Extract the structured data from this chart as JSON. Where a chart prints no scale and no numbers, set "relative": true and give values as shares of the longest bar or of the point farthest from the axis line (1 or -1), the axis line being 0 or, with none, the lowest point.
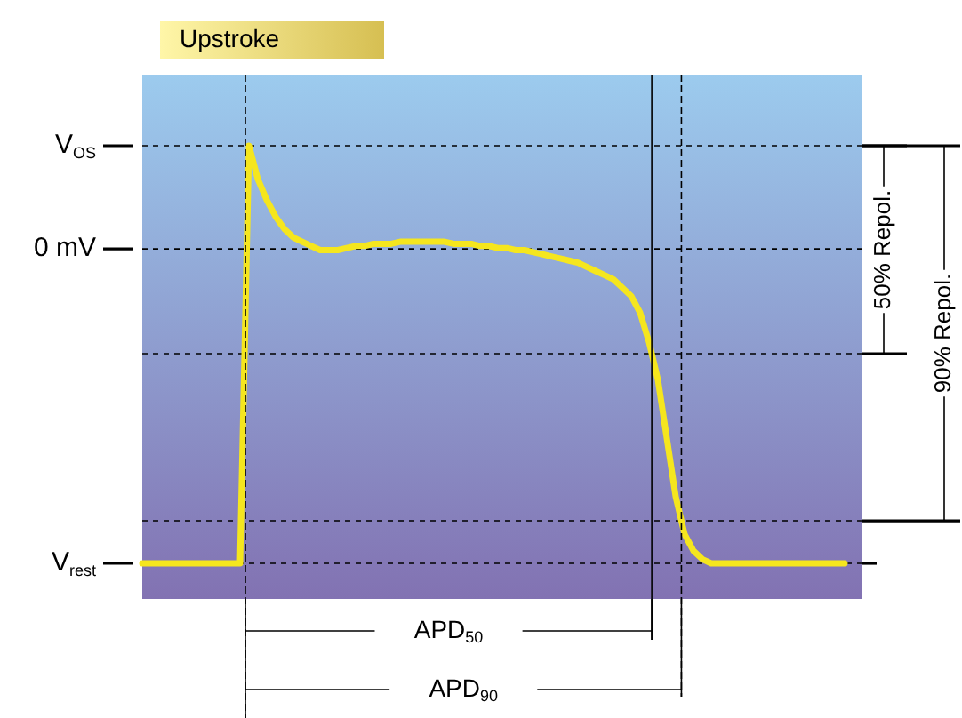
{
  "chart_data": {
    "type": "line",
    "relative": true,
    "tick_labels": false,
    "color": "#f5e61e",
    "categories": [
      null,
      null,
      null,
      null,
      null,
      null,
      null,
      null,
      null,
      null,
      null,
      null,
      null,
      null,
      null,
      null,
      null,
      null,
      null,
      null,
      null,
      null,
      null,
      null,
      null,
      null,
      null,
      null,
      null,
      null,
      null,
      null,
      null,
      null,
      null,
      null,
      null,
      null,
      null,
      null,
      null,
      null,
      null,
      null,
      null,
      null,
      null,
      null,
      null,
      null,
      null,
      null,
      null,
      null,
      null,
      null,
      null,
      null,
      null,
      null,
      null,
      null,
      null,
      null,
      null,
      null,
      null,
      null,
      null,
      null,
      null,
      null,
      null,
      null,
      null,
      null,
      null,
      null,
      null,
      null
    ],
    "values": [
      0,
      0,
      0,
      0,
      0,
      0,
      0,
      0,
      0,
      0,
      0,
      0,
      1,
      0.92,
      0.87,
      0.83,
      0.8,
      0.78,
      0.77,
      0.76,
      0.75,
      0.75,
      0.75,
      0.755,
      0.76,
      0.76,
      0.765,
      0.765,
      0.765,
      0.77,
      0.77,
      0.77,
      0.77,
      0.77,
      0.77,
      0.765,
      0.765,
      0.765,
      0.76,
      0.76,
      0.755,
      0.755,
      0.75,
      0.75,
      0.745,
      0.74,
      0.735,
      0.73,
      0.725,
      0.72,
      0.71,
      0.7,
      0.69,
      0.68,
      0.66,
      0.64,
      0.6,
      0.53,
      0.44,
      0.3,
      0.16,
      0.07,
      0.03,
      0.01,
      0,
      0,
      0,
      0,
      0,
      0,
      0,
      0,
      0,
      0,
      0,
      0,
      0,
      0,
      0,
      0
    ],
    "ref_lines": [
      {
        "axis": "y",
        "value": 1,
        "label": "V$_{OS}$",
        "color": "#000000",
        "line_style": "dashed"
      },
      {
        "axis": "y",
        "value": 0.753,
        "label": "0 mV",
        "color": "#000000",
        "line_style": "dashed"
      },
      {
        "axis": "y",
        "value": 0.502,
        "color": "#000000",
        "line_style": "dashed"
      },
      {
        "axis": "y",
        "value": 0.102,
        "color": "#000000",
        "line_style": "dashed"
      },
      {
        "axis": "y",
        "value": 0,
        "label": "V$_{rest}$",
        "color": "#000000",
        "line_style": "dashed"
      }
    ],
    "annotations": [
      "Upstroke",
      "APD$_{50}$",
      "APD$_{90}$",
      "50% Repol.",
      "90% Repol."
    ]
  }
}
